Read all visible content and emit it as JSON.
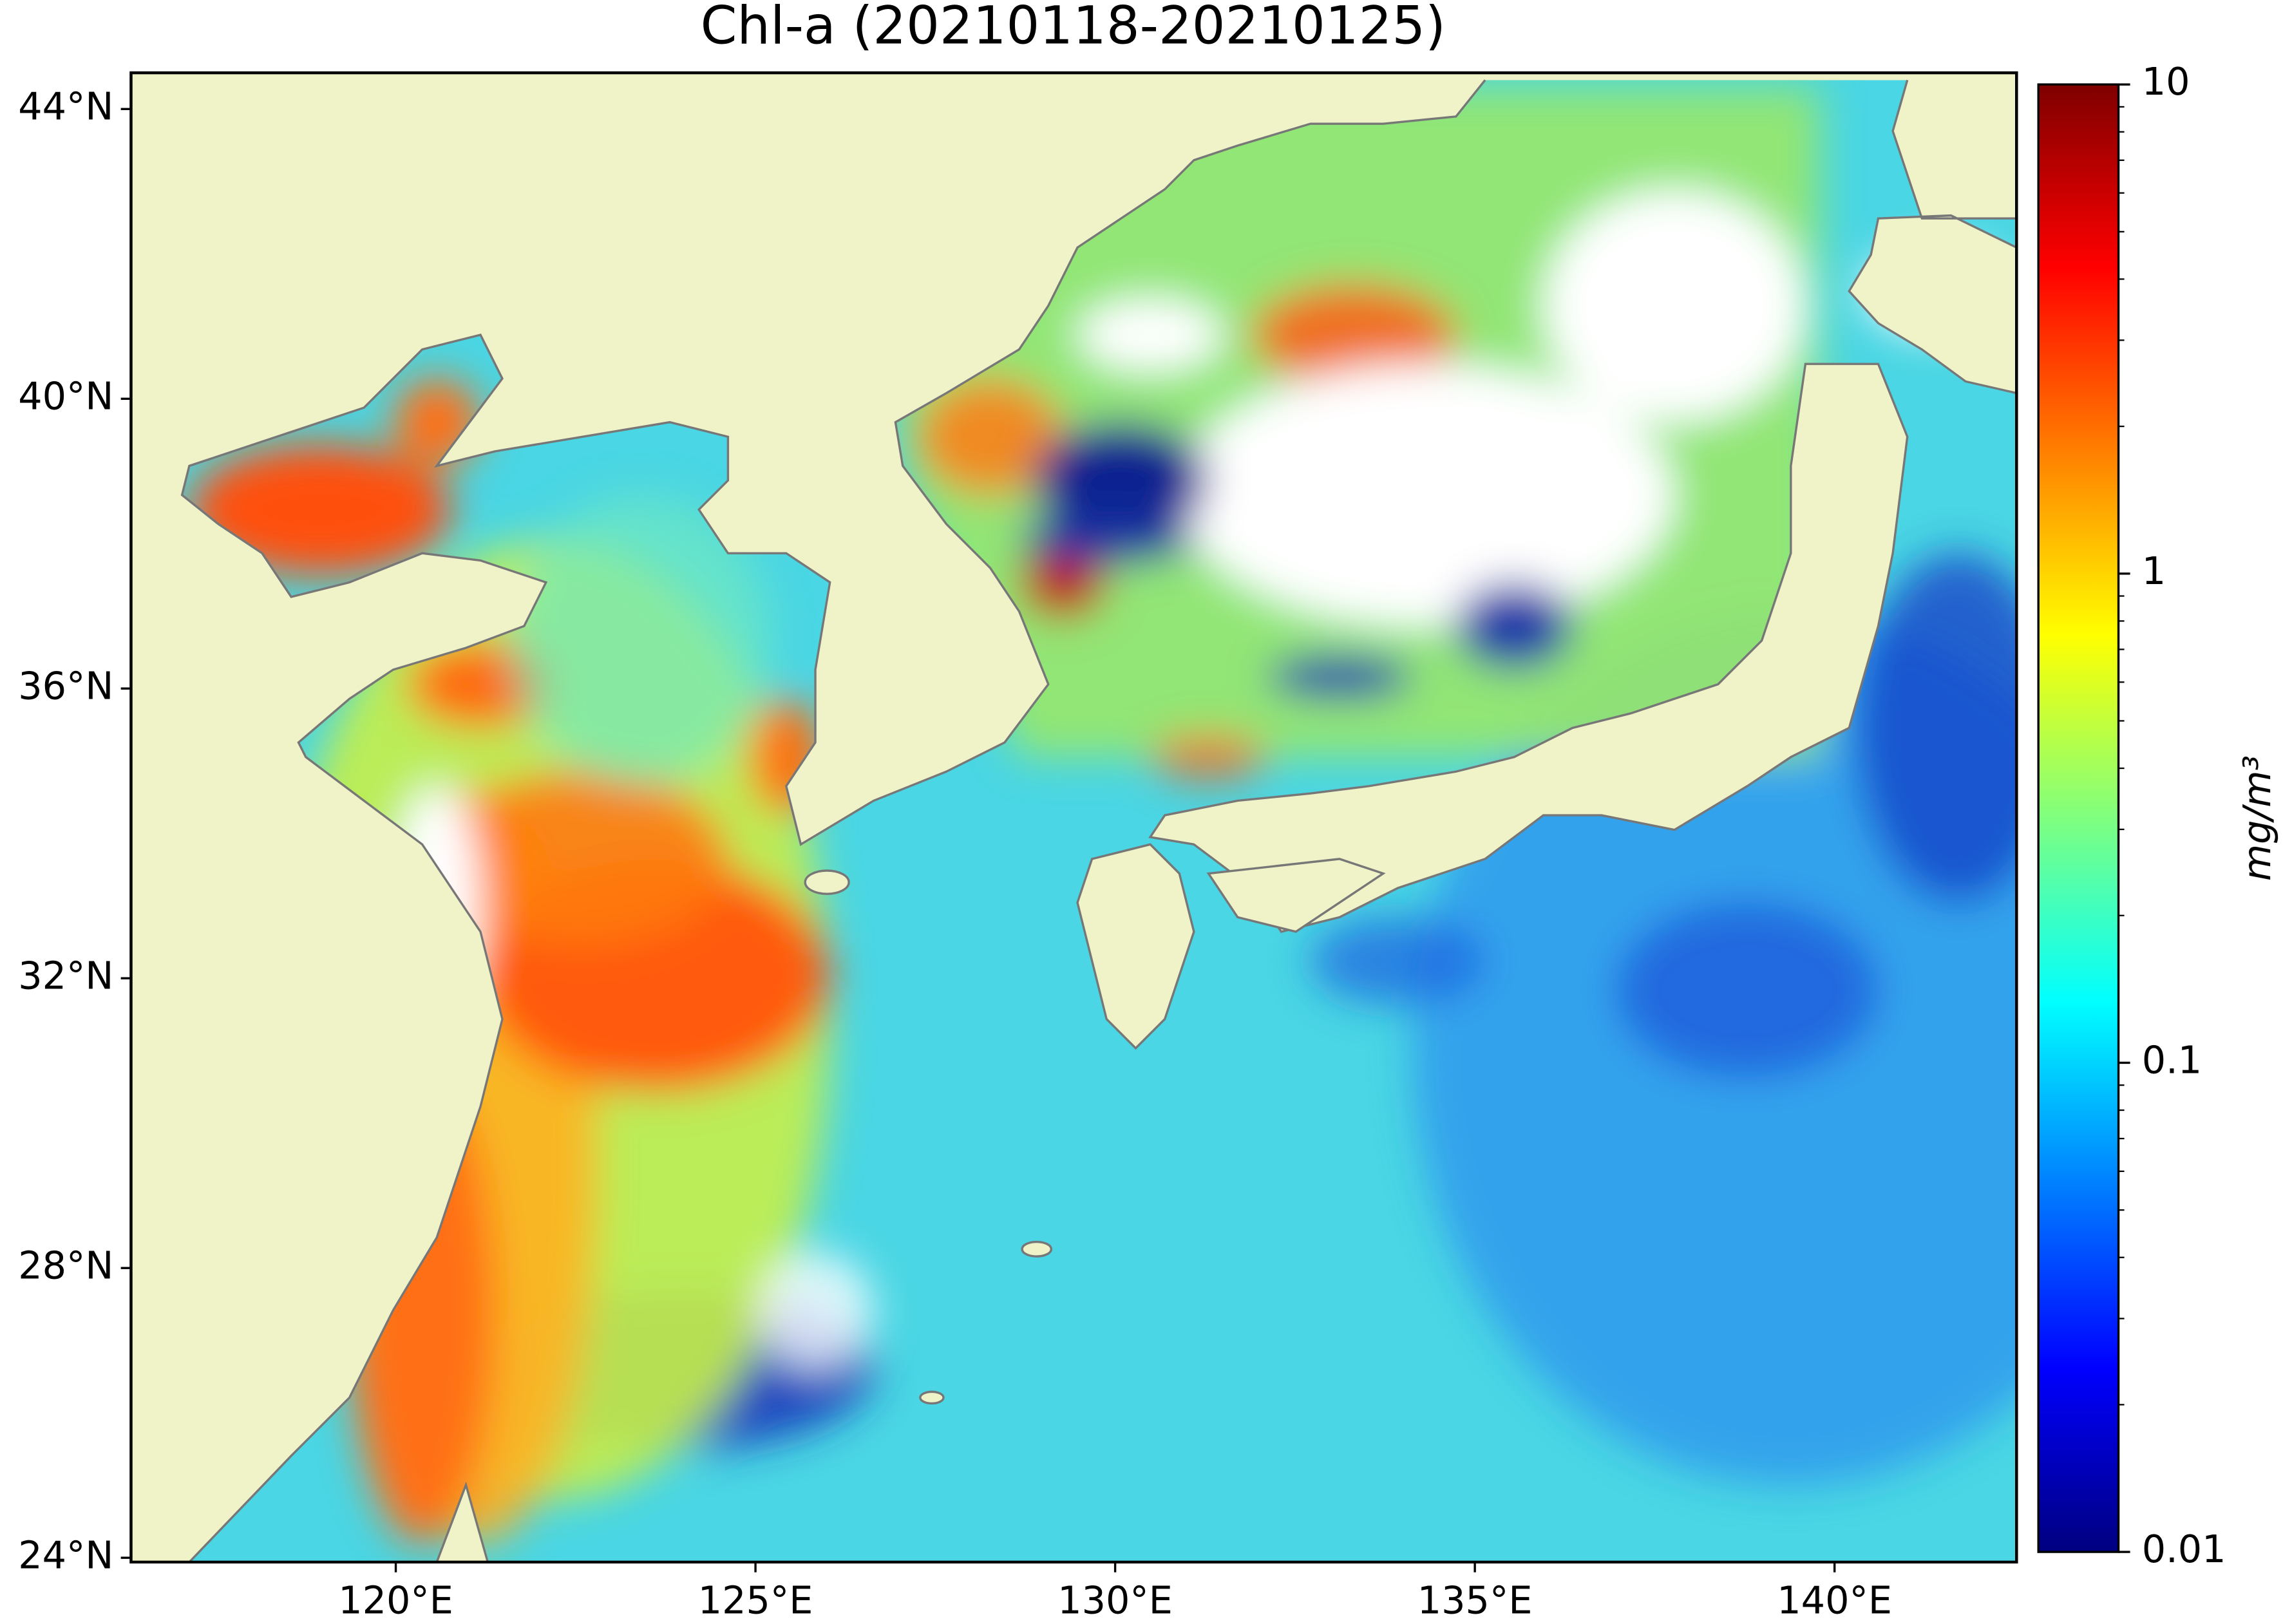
{
  "map": {
    "title": "Chl-a (20210118-20210125)",
    "xlim": [
      116.32,
      142.53
    ],
    "ylim": [
      23.94,
      44.5
    ],
    "xticks": [
      {
        "value": 120,
        "label": "120°E"
      },
      {
        "value": 125,
        "label": "125°E"
      },
      {
        "value": 130,
        "label": "130°E"
      },
      {
        "value": 135,
        "label": "135°E"
      },
      {
        "value": 140,
        "label": "140°E"
      }
    ],
    "yticks": [
      {
        "value": 24,
        "label": "24°N"
      },
      {
        "value": 28,
        "label": "28°N"
      },
      {
        "value": 32,
        "label": "32°N"
      },
      {
        "value": 36,
        "label": "36°N"
      },
      {
        "value": 40,
        "label": "40°N"
      },
      {
        "value": 44,
        "label": "44°N"
      }
    ],
    "colorbar": {
      "label": "mg/m³",
      "scale": "log",
      "colormap": "jet",
      "lim": [
        0.01,
        10
      ],
      "ticks": [
        0.01,
        0.1,
        1,
        10
      ],
      "minor_ticks": [
        0.02,
        0.03,
        0.04,
        0.05,
        0.06,
        0.07,
        0.08,
        0.09,
        0.2,
        0.3,
        0.4,
        0.5,
        0.6,
        0.7,
        0.8,
        0.9,
        2,
        3,
        4,
        5,
        6,
        7,
        8,
        9
      ]
    }
  }
}
